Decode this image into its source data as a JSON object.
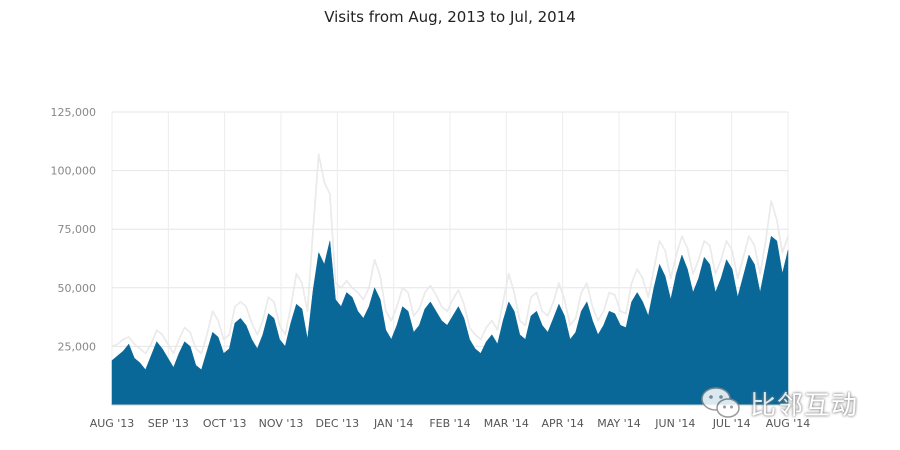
{
  "chart_data": {
    "type": "area",
    "title": "Visits from Aug, 2013 to Jul, 2014",
    "ylim": [
      0,
      125000
    ],
    "yticks": [
      "25,000",
      "50,000",
      "75,000",
      "100,000",
      "125,000"
    ],
    "ytick_values": [
      25000,
      50000,
      75000,
      100000,
      125000
    ],
    "x_labels": [
      "AUG '13",
      "SEP '13",
      "OCT '13",
      "NOV '13",
      "DEC '13",
      "JAN '14",
      "FEB '14",
      "MAR '14",
      "APR '14",
      "MAY '14",
      "JUN '14",
      "JUL '14",
      "AUG '14"
    ],
    "grid": true,
    "series": [
      {
        "color": "#0a6899",
        "values": [
          19000,
          21000,
          23000,
          26000,
          20000,
          18000,
          15000,
          21000,
          27000,
          24000,
          20000,
          16000,
          22000,
          27000,
          25000,
          17000,
          15000,
          23000,
          31000,
          29000,
          22000,
          24000,
          35000,
          37000,
          34000,
          28000,
          24000,
          30000,
          39000,
          37000,
          28000,
          25000,
          35000,
          43000,
          41000,
          28000,
          49000,
          65000,
          60000,
          70000,
          45000,
          42000,
          48000,
          46000,
          40000,
          37000,
          42000,
          50000,
          45000,
          32000,
          28000,
          34000,
          42000,
          40000,
          31000,
          34000,
          41000,
          44000,
          40000,
          36000,
          34000,
          38000,
          42000,
          37000,
          28000,
          24000,
          22000,
          27000,
          30000,
          26000,
          36000,
          44000,
          40000,
          30000,
          28000,
          38000,
          40000,
          34000,
          31000,
          37000,
          43000,
          38000,
          28000,
          31000,
          40000,
          44000,
          36000,
          30000,
          34000,
          40000,
          39000,
          34000,
          33000,
          44000,
          48000,
          44000,
          38000,
          50000,
          60000,
          55000,
          45000,
          56000,
          64000,
          58000,
          48000,
          54000,
          63000,
          60000,
          48000,
          54000,
          62000,
          58000,
          46000,
          55000,
          64000,
          60000,
          48000,
          60000,
          72000,
          70000,
          56000,
          66000
        ]
      },
      {
        "color": "#e8e8e8",
        "values": [
          25000,
          26000,
          28000,
          29000,
          26000,
          24000,
          22000,
          26000,
          32000,
          30000,
          26000,
          22000,
          28000,
          33000,
          31000,
          24000,
          22000,
          30000,
          40000,
          36000,
          28000,
          30000,
          42000,
          44000,
          42000,
          35000,
          30000,
          36000,
          46000,
          44000,
          34000,
          30000,
          42000,
          56000,
          52000,
          40000,
          75000,
          107000,
          95000,
          90000,
          52000,
          50000,
          53000,
          50000,
          48000,
          45000,
          50000,
          62000,
          55000,
          40000,
          36000,
          42000,
          50000,
          48000,
          38000,
          41000,
          48000,
          51000,
          47000,
          42000,
          40000,
          45000,
          49000,
          43000,
          33000,
          30000,
          28000,
          33000,
          36000,
          32000,
          44000,
          56000,
          48000,
          36000,
          34000,
          46000,
          48000,
          40000,
          38000,
          44000,
          52000,
          45000,
          34000,
          37000,
          48000,
          52000,
          42000,
          36000,
          40000,
          48000,
          47000,
          40000,
          39000,
          52000,
          58000,
          54000,
          46000,
          58000,
          70000,
          66000,
          54000,
          64000,
          72000,
          67000,
          56000,
          62000,
          70000,
          68000,
          56000,
          62000,
          70000,
          66000,
          54000,
          63000,
          72000,
          68000,
          56000,
          70000,
          87000,
          79000,
          65000,
          72000
        ]
      }
    ]
  },
  "watermark": {
    "text": "比邻互动"
  }
}
